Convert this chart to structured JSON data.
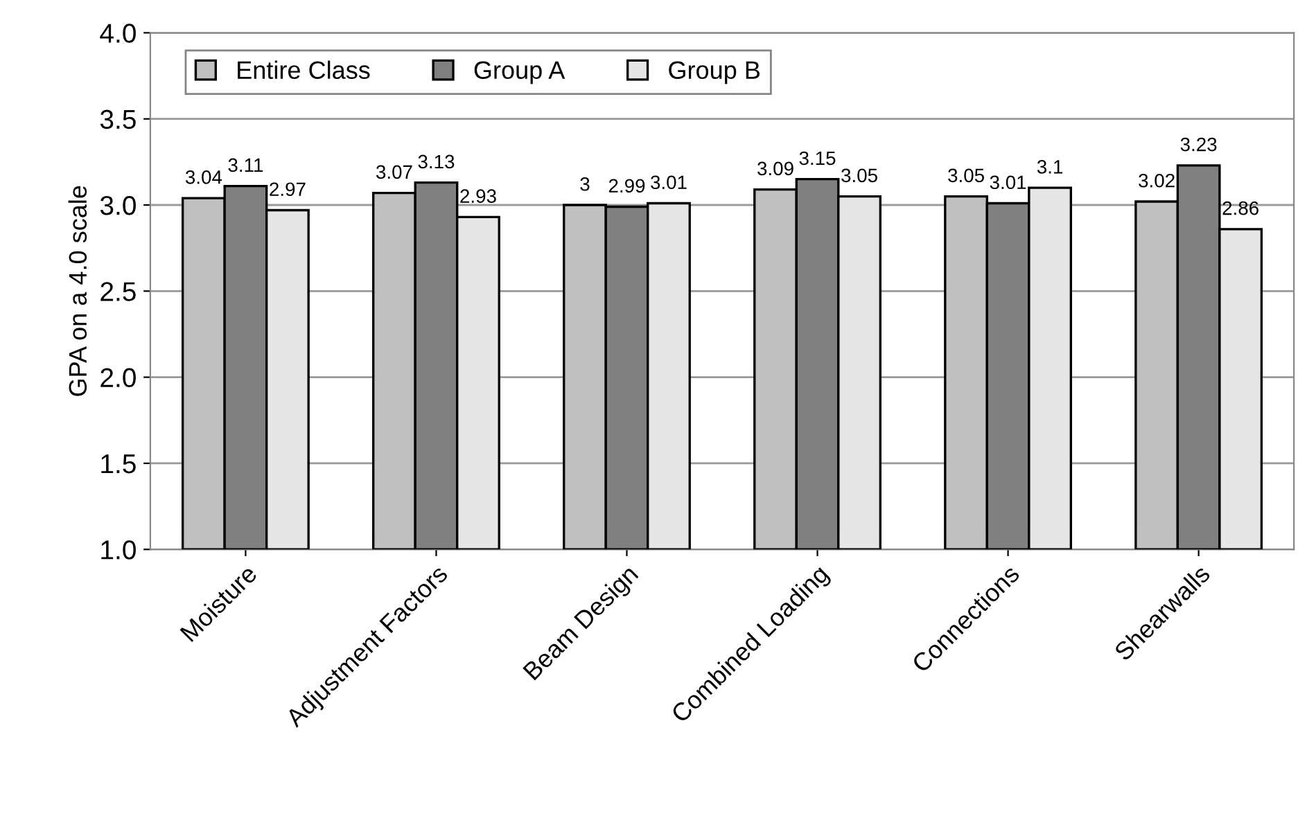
{
  "chart_data": {
    "type": "bar",
    "ylabel": "GPA on a 4.0 scale",
    "categories": [
      "Moisture",
      "Adjustment Factors",
      "Beam Design",
      "Combined Loading",
      "Connections",
      "Shearwalls"
    ],
    "series": [
      {
        "name": "Entire Class",
        "color": "#c0c0c0",
        "values": [
          3.04,
          3.07,
          3,
          3.09,
          3.05,
          3.02
        ]
      },
      {
        "name": "Group A",
        "color": "#808080",
        "values": [
          3.11,
          3.13,
          2.99,
          3.15,
          3.01,
          3.23
        ]
      },
      {
        "name": "Group B",
        "color": "#e6e6e6",
        "values": [
          2.97,
          2.93,
          3.01,
          3.05,
          3.1,
          2.86
        ]
      }
    ],
    "ylim": [
      1,
      4
    ],
    "yticks": [
      {
        "value": 1,
        "label": "1.0"
      },
      {
        "value": 1.5,
        "label": "1.5"
      },
      {
        "value": 2,
        "label": "2.0"
      },
      {
        "value": 2.5,
        "label": "2.5"
      },
      {
        "value": 3,
        "label": "3.0"
      },
      {
        "value": 3.5,
        "label": "3.5"
      },
      {
        "value": 4,
        "label": "4.0"
      }
    ],
    "grid": "y",
    "legend": "top left",
    "data_labels": true
  }
}
